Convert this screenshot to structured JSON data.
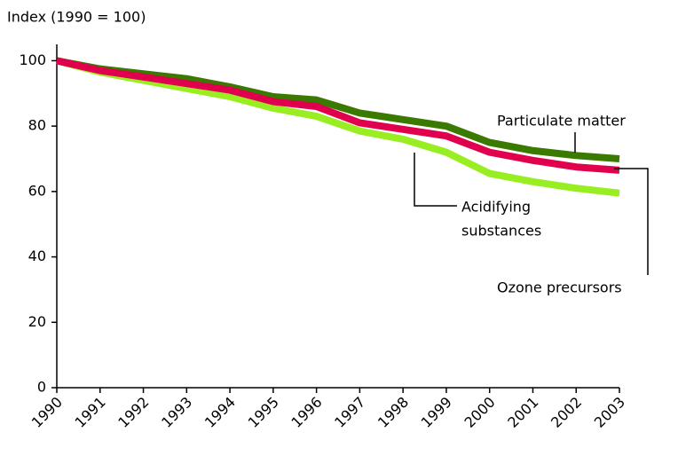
{
  "chart_data": {
    "type": "line",
    "title": "Index (1990 = 100)",
    "categories": [
      "1990",
      "1991",
      "1992",
      "1993",
      "1994",
      "1995",
      "1996",
      "1997",
      "1998",
      "1999",
      "2000",
      "2001",
      "2002",
      "2003"
    ],
    "series": [
      {
        "name": "Acidifying substances",
        "color": "#99ee22",
        "values": [
          100,
          96.5,
          94,
          91.5,
          89,
          85.5,
          83,
          78.5,
          76,
          72,
          65.5,
          63,
          61,
          59.5
        ]
      },
      {
        "name": "Particulate matter",
        "color": "#3a7a00",
        "values": [
          100,
          97.5,
          96,
          94.5,
          92,
          89,
          88,
          84,
          82,
          80,
          75,
          72.5,
          71,
          70
        ]
      },
      {
        "name": "Ozone precursors",
        "color": "#e0004d",
        "values": [
          100,
          97,
          95,
          93,
          91,
          87.5,
          86,
          81,
          79,
          77,
          72,
          69.5,
          67.5,
          66.5
        ]
      }
    ],
    "ylim": [
      0,
      105
    ],
    "yticks": [
      0,
      20,
      40,
      60,
      80,
      100
    ],
    "grid": false,
    "annotations": [
      {
        "lines": [
          "Particulate matter"
        ]
      },
      {
        "lines": [
          "Acidifying",
          "substances"
        ]
      },
      {
        "lines": [
          "Ozone precursors"
        ]
      }
    ]
  }
}
